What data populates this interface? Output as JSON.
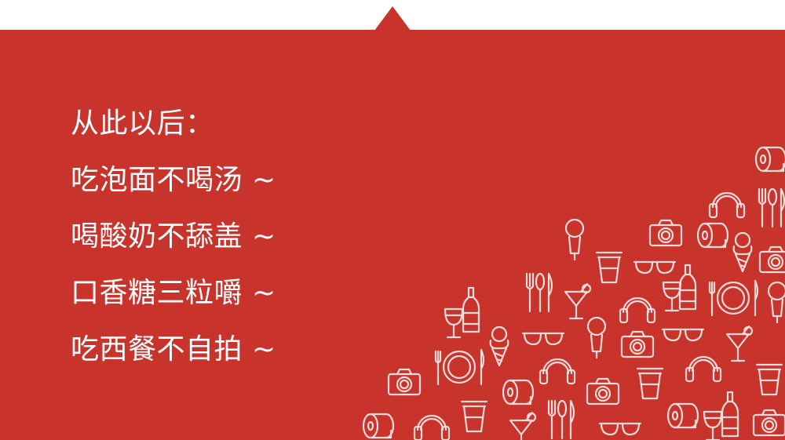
{
  "slide": {
    "background_color": "#c8332c",
    "text_color": "#ffffff",
    "lines": [
      "从此以后：",
      "吃泡面不喝汤 ~",
      "喝酸奶不舔盖 ~",
      "口香糖三粒嚼 ~",
      "吃西餐不自拍 ~"
    ]
  },
  "decor": {
    "icon_color": "#f7dcd9",
    "icons": [
      "toilet-roll-icon",
      "headphones-icon",
      "cutlery-icon",
      "microphone-icon",
      "camera-icon",
      "cup-icon",
      "sunglasses-icon",
      "wine-bottle-icon",
      "wine-glass-icon",
      "plate-icon",
      "ice-cream-icon",
      "cocktail-icon"
    ]
  }
}
